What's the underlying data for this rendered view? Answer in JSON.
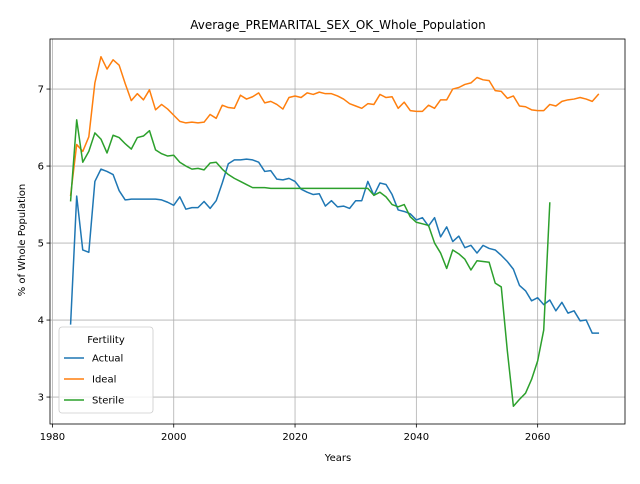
{
  "chart_data": {
    "type": "line",
    "title": "Average_PREMARITAL_SEX_OK_Whole_Population",
    "xlabel": "Years",
    "ylabel": "% of Whole Population",
    "xlim": [
      1979.6,
      2074.4
    ],
    "ylim": [
      2.65,
      7.65
    ],
    "xticks": [
      1980,
      2000,
      2020,
      2040,
      2060
    ],
    "yticks": [
      3,
      4,
      5,
      6,
      7
    ],
    "grid": true,
    "legend": {
      "title": "Fertility",
      "placement": "lower left"
    },
    "series": [
      {
        "name": "Actual",
        "color": "#1f77b4",
        "x": [
          1983,
          1984,
          1985,
          1986,
          1987,
          1988,
          1989,
          1990,
          1991,
          1992,
          1993,
          1994,
          1995,
          1996,
          1997,
          1998,
          1999,
          2000,
          2001,
          2002,
          2003,
          2004,
          2005,
          2006,
          2007,
          2008,
          2009,
          2010,
          2011,
          2012,
          2013,
          2014,
          2015,
          2016,
          2017,
          2018,
          2019,
          2020,
          2021,
          2022,
          2023,
          2024,
          2025,
          2026,
          2027,
          2028,
          2029,
          2030,
          2031,
          2032,
          2033,
          2034,
          2035,
          2036,
          2037,
          2038,
          2039,
          2040,
          2041,
          2042,
          2043,
          2044,
          2045,
          2046,
          2047,
          2048,
          2049,
          2050,
          2051,
          2052,
          2053,
          2054,
          2055,
          2056,
          2057,
          2058,
          2059,
          2060,
          2061,
          2062,
          2063,
          2064,
          2065,
          2066,
          2067,
          2068,
          2069,
          2070
        ],
        "y": [
          3.95,
          5.61,
          4.91,
          4.88,
          5.8,
          5.96,
          5.93,
          5.89,
          5.68,
          5.56,
          5.57,
          5.57,
          5.57,
          5.57,
          5.57,
          5.56,
          5.53,
          5.49,
          5.6,
          5.44,
          5.46,
          5.46,
          5.54,
          5.45,
          5.55,
          5.78,
          6.03,
          6.08,
          6.08,
          6.09,
          6.08,
          6.05,
          5.93,
          5.94,
          5.83,
          5.82,
          5.84,
          5.8,
          5.7,
          5.66,
          5.63,
          5.64,
          5.48,
          5.55,
          5.47,
          5.48,
          5.45,
          5.55,
          5.55,
          5.8,
          5.62,
          5.78,
          5.76,
          5.63,
          5.43,
          5.41,
          5.38,
          5.3,
          5.33,
          5.22,
          5.33,
          5.08,
          5.21,
          5.02,
          5.09,
          4.94,
          4.97,
          4.87,
          4.97,
          4.93,
          4.91,
          4.84,
          4.76,
          4.66,
          4.45,
          4.38,
          4.25,
          4.29,
          4.2,
          4.26,
          4.12,
          4.23,
          4.09,
          4.12,
          3.99,
          4.0,
          3.83,
          3.83
        ]
      },
      {
        "name": "Ideal",
        "color": "#ff7f0e",
        "x": [
          1983,
          1984,
          1985,
          1986,
          1987,
          1988,
          1989,
          1990,
          1991,
          1992,
          1993,
          1994,
          1995,
          1996,
          1997,
          1998,
          1999,
          2000,
          2001,
          2002,
          2003,
          2004,
          2005,
          2006,
          2007,
          2008,
          2009,
          2010,
          2011,
          2012,
          2013,
          2014,
          2015,
          2016,
          2017,
          2018,
          2019,
          2020,
          2021,
          2022,
          2023,
          2024,
          2025,
          2026,
          2027,
          2028,
          2029,
          2030,
          2031,
          2032,
          2033,
          2034,
          2035,
          2036,
          2037,
          2038,
          2039,
          2040,
          2041,
          2042,
          2043,
          2044,
          2045,
          2046,
          2047,
          2048,
          2049,
          2050,
          2051,
          2052,
          2053,
          2054,
          2055,
          2056,
          2057,
          2058,
          2059,
          2060,
          2061,
          2062,
          2063,
          2064,
          2065,
          2066,
          2067,
          2068,
          2069,
          2070
        ],
        "y": [
          5.62,
          6.28,
          6.19,
          6.38,
          7.08,
          7.42,
          7.26,
          7.38,
          7.31,
          7.07,
          6.85,
          6.94,
          6.86,
          6.99,
          6.73,
          6.8,
          6.74,
          6.66,
          6.58,
          6.56,
          6.57,
          6.56,
          6.57,
          6.67,
          6.62,
          6.79,
          6.76,
          6.75,
          6.92,
          6.87,
          6.9,
          6.95,
          6.82,
          6.84,
          6.8,
          6.74,
          6.89,
          6.91,
          6.89,
          6.95,
          6.93,
          6.96,
          6.94,
          6.94,
          6.91,
          6.87,
          6.81,
          6.78,
          6.75,
          6.81,
          6.8,
          6.93,
          6.89,
          6.9,
          6.75,
          6.83,
          6.72,
          6.71,
          6.71,
          6.79,
          6.75,
          6.86,
          6.86,
          7.0,
          7.02,
          7.06,
          7.08,
          7.15,
          7.12,
          7.11,
          6.98,
          6.97,
          6.88,
          6.91,
          6.78,
          6.77,
          6.73,
          6.72,
          6.72,
          6.8,
          6.78,
          6.84,
          6.86,
          6.87,
          6.89,
          6.87,
          6.84,
          6.93
        ]
      },
      {
        "name": "Sterile",
        "color": "#2ca02c",
        "x": [
          1983,
          1984,
          1985,
          1986,
          1987,
          1988,
          1989,
          1990,
          1991,
          1992,
          1993,
          1994,
          1995,
          1996,
          1997,
          1998,
          1999,
          2000,
          2001,
          2002,
          2003,
          2004,
          2005,
          2006,
          2007,
          2008,
          2009,
          2010,
          2011,
          2012,
          2013,
          2014,
          2015,
          2016,
          2017,
          2018,
          2019,
          2020,
          2021,
          2022,
          2023,
          2024,
          2025,
          2026,
          2027,
          2028,
          2029,
          2030,
          2031,
          2032,
          2033,
          2034,
          2035,
          2036,
          2037,
          2038,
          2039,
          2040,
          2041,
          2042,
          2043,
          2044,
          2045,
          2046,
          2047,
          2048,
          2049,
          2050,
          2051,
          2052,
          2053,
          2054,
          2055,
          2056,
          2057,
          2058,
          2059,
          2060,
          2061,
          2062
        ],
        "y": [
          5.55,
          6.6,
          6.05,
          6.19,
          6.43,
          6.35,
          6.17,
          6.4,
          6.37,
          6.29,
          6.22,
          6.37,
          6.39,
          6.46,
          6.21,
          6.16,
          6.13,
          6.14,
          6.05,
          6.0,
          5.96,
          5.97,
          5.95,
          6.04,
          6.05,
          5.96,
          5.89,
          5.84,
          5.8,
          5.76,
          5.72,
          5.72,
          5.72,
          5.71,
          5.71,
          5.71,
          5.71,
          5.71,
          5.71,
          5.71,
          5.71,
          5.71,
          5.71,
          5.71,
          5.71,
          5.71,
          5.71,
          5.71,
          5.71,
          5.71,
          5.62,
          5.66,
          5.6,
          5.5,
          5.47,
          5.5,
          5.34,
          5.27,
          5.25,
          5.23,
          5.0,
          4.87,
          4.67,
          4.91,
          4.86,
          4.79,
          4.65,
          4.77,
          4.76,
          4.75,
          4.48,
          4.43,
          3.6,
          2.88,
          2.97,
          3.05,
          3.23,
          3.47,
          3.87,
          5.52
        ]
      }
    ]
  }
}
